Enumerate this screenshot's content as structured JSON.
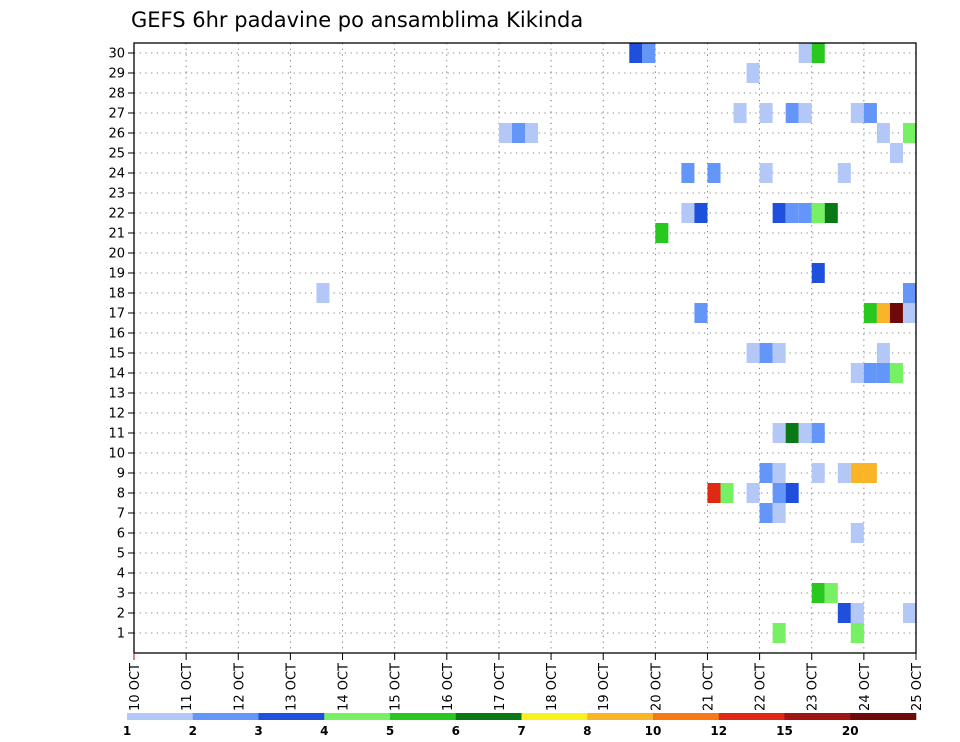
{
  "chart_data": {
    "type": "heatmap",
    "title": "GEFS 6hr padavine po ansamblima Kikinda",
    "xlabel": "",
    "ylabel": "",
    "x_tick_labels": [
      "10 OCT",
      "11 OCT",
      "12 OCT",
      "13 OCT",
      "14 OCT",
      "15 OCT",
      "16 OCT",
      "17 OCT",
      "18 OCT",
      "19 OCT",
      "20 OCT",
      "21 OCT",
      "22 OCT",
      "23 OCT",
      "24 OCT",
      "25 OCT"
    ],
    "y_tick_labels": [
      "1",
      "2",
      "3",
      "4",
      "5",
      "6",
      "7",
      "8",
      "9",
      "10",
      "11",
      "12",
      "13",
      "14",
      "15",
      "16",
      "17",
      "18",
      "19",
      "20",
      "21",
      "22",
      "23",
      "24",
      "25",
      "26",
      "27",
      "28",
      "29",
      "30"
    ],
    "time_step_hours": 6,
    "ylim": [
      1,
      30
    ],
    "grid": true,
    "colorbar": {
      "labels": [
        "1",
        "2",
        "3",
        "4",
        "5",
        "6",
        "7",
        "8",
        "10",
        "12",
        "15",
        "20"
      ],
      "colors": [
        "#b4c8f8",
        "#6495f8",
        "#1e50dc",
        "#78f064",
        "#28c81e",
        "#0a7814",
        "#faf01e",
        "#fab428",
        "#fa7814",
        "#e12814",
        "#a01414",
        "#6e0a0a"
      ]
    },
    "cells": [
      {
        "m": 30,
        "t": "10/19 12",
        "c": 2
      },
      {
        "m": 30,
        "t": "10/19 18",
        "c": 1
      },
      {
        "m": 30,
        "t": "10/22 18",
        "c": 0
      },
      {
        "m": 30,
        "t": "10/23 00",
        "c": 4
      },
      {
        "m": 29,
        "t": "10/21 18",
        "c": 0
      },
      {
        "m": 27,
        "t": "10/21 12",
        "c": 0
      },
      {
        "m": 27,
        "t": "10/22 00",
        "c": 0
      },
      {
        "m": 27,
        "t": "10/22 12",
        "c": 1
      },
      {
        "m": 27,
        "t": "10/22 18",
        "c": 0
      },
      {
        "m": 27,
        "t": "10/23 18",
        "c": 0
      },
      {
        "m": 27,
        "t": "10/24 00",
        "c": 1
      },
      {
        "m": 26,
        "t": "10/17 00",
        "c": 0
      },
      {
        "m": 26,
        "t": "10/17 06",
        "c": 1
      },
      {
        "m": 26,
        "t": "10/17 12",
        "c": 0
      },
      {
        "m": 26,
        "t": "10/24 06",
        "c": 0
      },
      {
        "m": 26,
        "t": "10/24 18",
        "c": 3
      },
      {
        "m": 25,
        "t": "10/24 12",
        "c": 0
      },
      {
        "m": 24,
        "t": "10/20 12",
        "c": 1
      },
      {
        "m": 24,
        "t": "10/21 00",
        "c": 1
      },
      {
        "m": 24,
        "t": "10/22 00",
        "c": 0
      },
      {
        "m": 24,
        "t": "10/23 12",
        "c": 0
      },
      {
        "m": 22,
        "t": "10/20 12",
        "c": 0
      },
      {
        "m": 22,
        "t": "10/20 18",
        "c": 2
      },
      {
        "m": 22,
        "t": "10/22 06",
        "c": 2
      },
      {
        "m": 22,
        "t": "10/22 12",
        "c": 1
      },
      {
        "m": 22,
        "t": "10/22 18",
        "c": 1
      },
      {
        "m": 22,
        "t": "10/23 00",
        "c": 3
      },
      {
        "m": 22,
        "t": "10/23 06",
        "c": 5
      },
      {
        "m": 21,
        "t": "10/20 00",
        "c": 4
      },
      {
        "m": 19,
        "t": "10/23 00",
        "c": 2
      },
      {
        "m": 18,
        "t": "10/13 12",
        "c": 0
      },
      {
        "m": 18,
        "t": "10/24 18",
        "c": 1
      },
      {
        "m": 17,
        "t": "10/20 18",
        "c": 1
      },
      {
        "m": 17,
        "t": "10/24 00",
        "c": 4
      },
      {
        "m": 17,
        "t": "10/24 06",
        "c": 7
      },
      {
        "m": 17,
        "t": "10/24 12",
        "c": 11
      },
      {
        "m": 17,
        "t": "10/24 18",
        "c": 0
      },
      {
        "m": 15,
        "t": "10/21 18",
        "c": 0
      },
      {
        "m": 15,
        "t": "10/22 00",
        "c": 1
      },
      {
        "m": 15,
        "t": "10/22 06",
        "c": 0
      },
      {
        "m": 15,
        "t": "10/24 06",
        "c": 0
      },
      {
        "m": 14,
        "t": "10/23 18",
        "c": 0
      },
      {
        "m": 14,
        "t": "10/24 00",
        "c": 1
      },
      {
        "m": 14,
        "t": "10/24 06",
        "c": 1
      },
      {
        "m": 14,
        "t": "10/24 12",
        "c": 3
      },
      {
        "m": 11,
        "t": "10/22 06",
        "c": 0
      },
      {
        "m": 11,
        "t": "10/22 12",
        "c": 5
      },
      {
        "m": 11,
        "t": "10/22 18",
        "c": 0
      },
      {
        "m": 11,
        "t": "10/23 00",
        "c": 1
      },
      {
        "m": 9,
        "t": "10/22 00",
        "c": 1
      },
      {
        "m": 9,
        "t": "10/22 06",
        "c": 0
      },
      {
        "m": 9,
        "t": "10/23 00",
        "c": 0
      },
      {
        "m": 9,
        "t": "10/23 12",
        "c": 0
      },
      {
        "m": 9,
        "t": "10/23 18",
        "c": 7
      },
      {
        "m": 9,
        "t": "10/24 00",
        "c": 7
      },
      {
        "m": 8,
        "t": "10/21 00",
        "c": 9
      },
      {
        "m": 8,
        "t": "10/21 06",
        "c": 3
      },
      {
        "m": 8,
        "t": "10/21 18",
        "c": 0
      },
      {
        "m": 8,
        "t": "10/22 06",
        "c": 1
      },
      {
        "m": 8,
        "t": "10/22 12",
        "c": 2
      },
      {
        "m": 7,
        "t": "10/22 00",
        "c": 1
      },
      {
        "m": 7,
        "t": "10/22 06",
        "c": 0
      },
      {
        "m": 6,
        "t": "10/23 18",
        "c": 0
      },
      {
        "m": 3,
        "t": "10/23 00",
        "c": 4
      },
      {
        "m": 3,
        "t": "10/23 06",
        "c": 3
      },
      {
        "m": 2,
        "t": "10/23 12",
        "c": 2
      },
      {
        "m": 2,
        "t": "10/23 18",
        "c": 0
      },
      {
        "m": 2,
        "t": "10/24 18",
        "c": 0
      },
      {
        "m": 1,
        "t": "10/22 06",
        "c": 3
      },
      {
        "m": 1,
        "t": "10/23 18",
        "c": 3
      }
    ]
  }
}
